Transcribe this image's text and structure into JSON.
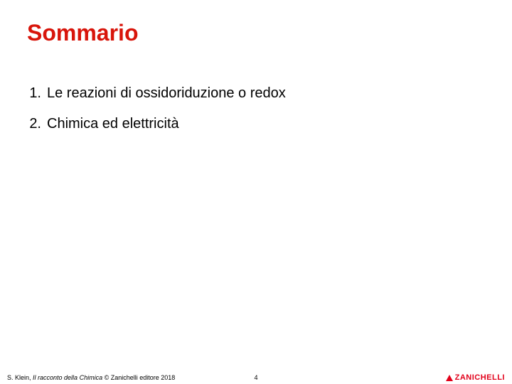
{
  "title": {
    "text": "Sommario",
    "color": "#d8150b",
    "fontsize": 32
  },
  "list": {
    "fontsize": 20,
    "color": "#000000",
    "items": [
      {
        "num": "1.",
        "text": "Le reazioni di ossidoriduzione o redox"
      },
      {
        "num": "2.",
        "text": "Chimica ed elettricità"
      }
    ]
  },
  "footer": {
    "author": "S. Klein, ",
    "book_title": "Il racconto della Chimica",
    "suffix": " © Zanichelli editore 2018",
    "fontsize": 9,
    "color": "#000000",
    "page_number": "4",
    "logo_text": "ZANICHELLI",
    "logo_color": "#e2001a",
    "logo_fontsize": 11
  }
}
